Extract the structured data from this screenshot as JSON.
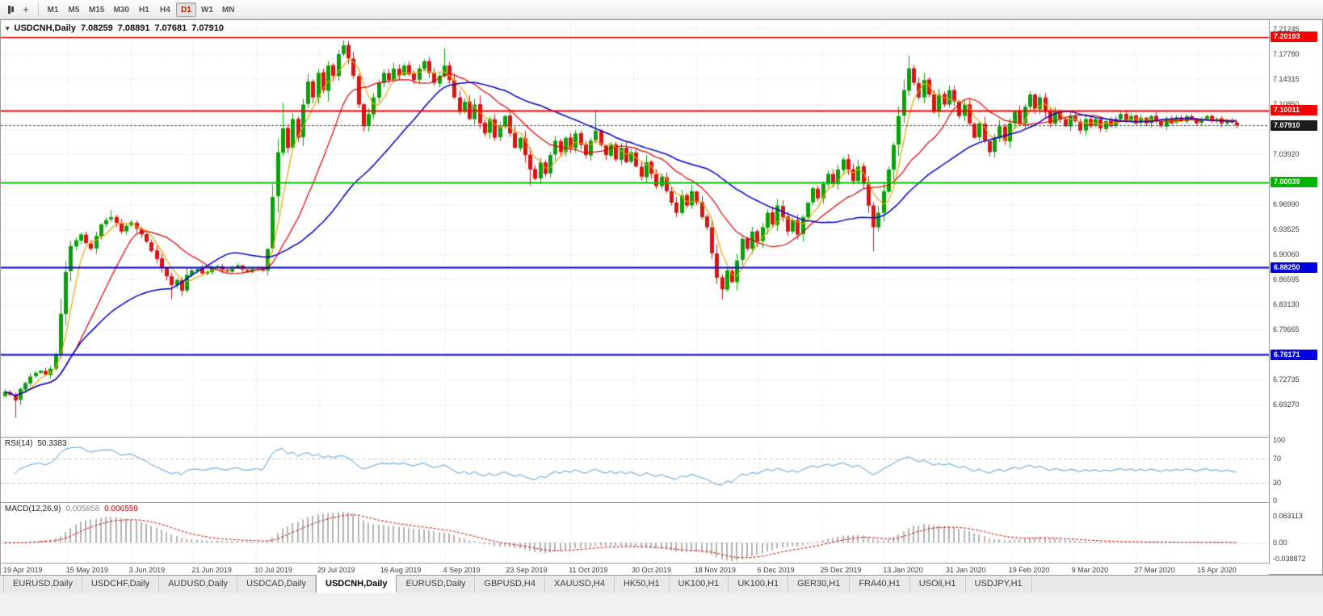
{
  "toolbar": {
    "timeframes": [
      "M1",
      "M5",
      "M15",
      "M30",
      "H1",
      "H4",
      "D1",
      "W1",
      "MN"
    ],
    "active_timeframe": "D1"
  },
  "chart_header": {
    "collapse_icon": "▾",
    "symbol": "USDCNH,Daily",
    "open": "7.08259",
    "high": "7.08891",
    "low": "7.07681",
    "close": "7.07910"
  },
  "price_scale": {
    "labels": [
      "7.21245",
      "7.17780",
      "7.14315",
      "7.10850",
      "7.07385",
      "7.03920",
      "7.00455",
      "6.96990",
      "6.93525",
      "6.90060",
      "6.86595",
      "6.83130",
      "6.79665",
      "6.76200",
      "6.72735",
      "6.69270"
    ],
    "tags": [
      {
        "value": "7.20193",
        "bg": "#f40000",
        "fg": "#ffffff",
        "price": 7.20193
      },
      {
        "value": "7.10011",
        "bg": "#f40000",
        "fg": "#ffffff",
        "price": 7.10011
      },
      {
        "value": "7.07910",
        "bg": "#1c1c1c",
        "fg": "#ffffff",
        "price": 7.0791
      },
      {
        "value": "7.00039",
        "bg": "#00b400",
        "fg": "#ffffff",
        "price": 7.00039
      },
      {
        "value": "6.88250",
        "bg": "#0000dc",
        "fg": "#ffffff",
        "price": 6.8825
      },
      {
        "value": "6.76171",
        "bg": "#0000dc",
        "fg": "#ffffff",
        "price": 6.76171
      }
    ]
  },
  "dates": [
    "19 Apr 2019",
    "15 May 2019",
    "3 Jun 2019",
    "21 Jun 2019",
    "10 Jul 2019",
    "29 Jul 2019",
    "16 Aug 2019",
    "4 Sep 2019",
    "23 Sep 2019",
    "11 Oct 2019",
    "30 Oct 2019",
    "18 Nov 2019",
    "6 Dec 2019",
    "25 Dec 2019",
    "13 Jan 2020",
    "31 Jan 2020",
    "19 Feb 2020",
    "9 Mar 2020",
    "27 Mar 2020",
    "15 Apr 2020"
  ],
  "indicators": {
    "rsi": {
      "name": "RSI(14)",
      "value": "50.3383",
      "period": 14,
      "line_color": "#4a9edb",
      "scale_labels": [
        {
          "text": "100",
          "v": 100
        },
        {
          "text": "70",
          "v": 70
        },
        {
          "text": "30",
          "v": 30
        },
        {
          "text": "0",
          "v": 0
        }
      ],
      "level_lines": [
        70,
        30
      ]
    },
    "macd": {
      "name": "MACD(12,26,9)",
      "value_main": "0.005858",
      "value_signal": "0.006559",
      "params": [
        12,
        26,
        9
      ],
      "histogram_color": "#b4b4b4",
      "signal_color": "#d40000",
      "scale_labels": [
        {
          "text": "0.063113",
          "v": 0.063113
        },
        {
          "text": "0.00",
          "v": 0
        },
        {
          "text": "-0.038872",
          "v": -0.038872
        }
      ]
    }
  },
  "tabs": {
    "active_index": 4,
    "items": [
      "EURUSD,Daily",
      "USDCHF,Daily",
      "AUDUSD,Daily",
      "USDCAD,Daily",
      "USDCNH,Daily",
      "EURUSD,Daily",
      "GBPUSD,H4",
      "XAUUSD,H4",
      "HK50,H1",
      "UK100,H1",
      "UK100,H1",
      "GER30,H1",
      "FRA40,H1",
      "USOil,H1",
      "USDJPY,H1"
    ],
    "note": "active tab is USDCNH,Daily"
  },
  "chart_data": {
    "type": "candlestick",
    "symbol": "USDCNH",
    "timeframe": "Daily",
    "ylim": [
      6.6476,
      7.225
    ],
    "bar_count": 245,
    "up_color": "#09a109",
    "down_color": "#dc1414",
    "current_price": 7.0791,
    "levels": [
      {
        "price": 7.20193,
        "color": "#f40000",
        "width": 1.4
      },
      {
        "price": 7.10011,
        "color": "#f40000",
        "width": 2
      },
      {
        "price": 7.00039,
        "color": "#00c000",
        "width": 2
      },
      {
        "price": 6.8825,
        "color": "#0000dc",
        "width": 2
      },
      {
        "price": 6.76171,
        "color": "#0000dc",
        "width": 2
      }
    ],
    "moving_averages": [
      {
        "period": 5,
        "color": "#eca400"
      },
      {
        "period": 15,
        "color": "#e00000"
      },
      {
        "period": 34,
        "color": "#0000cc"
      }
    ],
    "closes": [
      6.71,
      6.706,
      6.698,
      6.714,
      6.722,
      6.731,
      6.736,
      6.739,
      6.734,
      6.742,
      6.762,
      6.818,
      6.876,
      6.912,
      6.92,
      6.928,
      6.916,
      6.908,
      6.926,
      6.942,
      6.948,
      6.952,
      6.944,
      6.932,
      6.94,
      6.945,
      6.936,
      6.928,
      6.918,
      6.905,
      6.894,
      6.882,
      6.87,
      6.858,
      6.865,
      6.85,
      6.872,
      6.878,
      6.88,
      6.874,
      6.876,
      6.882,
      6.884,
      6.878,
      6.877,
      6.883,
      6.885,
      6.879,
      6.876,
      6.88,
      6.882,
      6.878,
      6.908,
      6.98,
      7.042,
      7.075,
      7.048,
      7.088,
      7.062,
      7.108,
      7.14,
      7.118,
      7.152,
      7.128,
      7.162,
      7.148,
      7.178,
      7.19,
      7.172,
      7.148,
      7.108,
      7.078,
      7.095,
      7.118,
      7.138,
      7.152,
      7.142,
      7.158,
      7.148,
      7.162,
      7.15,
      7.142,
      7.158,
      7.168,
      7.152,
      7.138,
      7.148,
      7.162,
      7.142,
      7.118,
      7.098,
      7.112,
      7.088,
      7.108,
      7.082,
      7.068,
      7.088,
      7.062,
      7.078,
      7.092,
      7.068,
      7.048,
      7.062,
      7.038,
      7.018,
      7.005,
      7.028,
      7.012,
      7.038,
      7.058,
      7.042,
      7.062,
      7.048,
      7.068,
      7.052,
      7.038,
      7.058,
      7.072,
      7.052,
      7.038,
      7.052,
      7.032,
      7.048,
      7.028,
      7.042,
      7.022,
      7.008,
      7.028,
      7.012,
      6.995,
      7.008,
      6.988,
      6.972,
      6.958,
      6.982,
      6.968,
      6.988,
      6.972,
      6.952,
      6.938,
      6.902,
      6.868,
      6.852,
      6.878,
      6.862,
      6.892,
      6.922,
      6.908,
      6.932,
      6.918,
      6.938,
      6.958,
      6.942,
      6.968,
      6.952,
      6.932,
      6.948,
      6.928,
      6.952,
      6.972,
      6.992,
      6.978,
      6.998,
      7.012,
      6.998,
      7.018,
      7.032,
      7.018,
      7.002,
      7.022,
      6.998,
      6.968,
      6.938,
      6.958,
      6.988,
      7.018,
      7.052,
      7.092,
      7.128,
      7.158,
      7.138,
      7.118,
      7.142,
      7.122,
      7.098,
      7.122,
      7.108,
      7.128,
      7.112,
      7.092,
      7.108,
      7.082,
      7.062,
      7.082,
      7.058,
      7.042,
      7.062,
      7.078,
      7.058,
      7.082,
      7.098,
      7.082,
      7.105,
      7.122,
      7.102,
      7.118,
      7.098,
      7.082,
      7.098,
      7.088,
      7.078,
      7.092,
      7.085,
      7.072,
      7.088,
      7.078,
      7.088,
      7.075,
      7.085,
      7.078,
      7.088,
      7.095,
      7.085,
      7.092,
      7.082,
      7.09,
      7.082,
      7.092,
      7.085,
      7.078,
      7.088,
      7.082,
      7.09,
      7.085,
      7.092,
      7.088,
      7.082,
      7.088,
      7.092,
      7.085,
      7.088,
      7.082,
      7.086,
      7.083,
      7.079
    ],
    "wick_overrides": [
      [
        2,
        "l",
        6.674
      ],
      [
        21,
        "h",
        6.962
      ],
      [
        33,
        "l",
        6.838
      ],
      [
        55,
        "h",
        7.11
      ],
      [
        67,
        "h",
        7.197
      ],
      [
        87,
        "h",
        7.186
      ],
      [
        104,
        "l",
        6.996
      ],
      [
        117,
        "h",
        7.1
      ],
      [
        142,
        "l",
        6.838
      ],
      [
        172,
        "l",
        6.905
      ],
      [
        179,
        "h",
        7.176
      ]
    ]
  }
}
